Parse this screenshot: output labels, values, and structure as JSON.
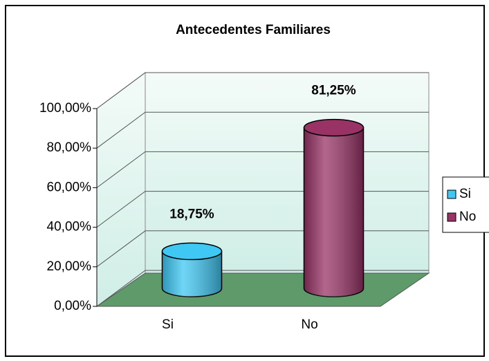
{
  "chart_data": {
    "type": "bar3d",
    "title": "Antecedentes Familiares",
    "categories": [
      "Si",
      "No"
    ],
    "series": [
      {
        "name": "Si",
        "color": "#40c8f4",
        "values": [
          18.75,
          null
        ],
        "value_labels": [
          "18,75%",
          null
        ]
      },
      {
        "name": "No",
        "color": "#993366",
        "values": [
          null,
          81.25
        ],
        "value_labels": [
          null,
          "81,25%"
        ]
      }
    ],
    "ylim": [
      0,
      100
    ],
    "yticks": [
      {
        "value": 0,
        "label": "0,00%"
      },
      {
        "value": 20,
        "label": "20,00%"
      },
      {
        "value": 40,
        "label": "40,00%"
      },
      {
        "value": 60,
        "label": "60,00%"
      },
      {
        "value": 80,
        "label": "80,00%"
      },
      {
        "value": 100,
        "label": "100,00%"
      }
    ],
    "grid": true,
    "legend": "right"
  }
}
